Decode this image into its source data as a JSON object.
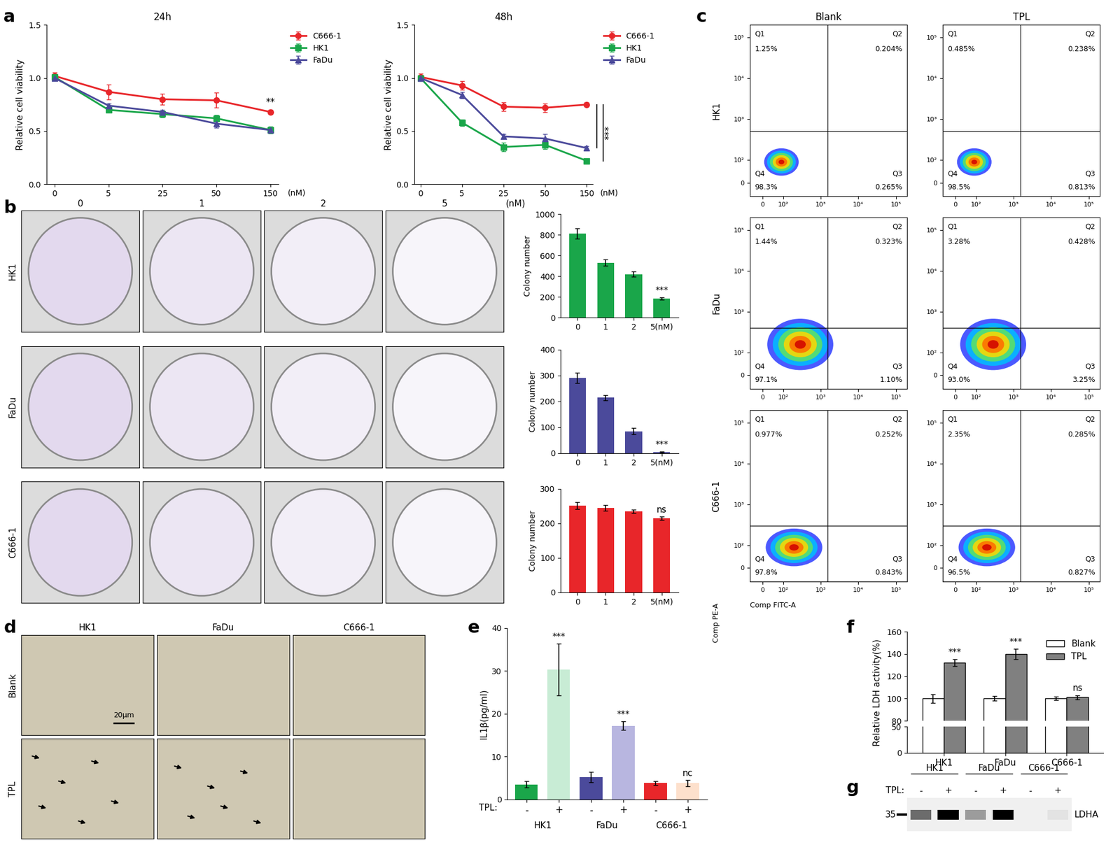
{
  "panel_labels": [
    "a",
    "b",
    "c",
    "d",
    "e",
    "f",
    "g"
  ],
  "chart_data": [
    {
      "type": "line",
      "title": "24h",
      "categories": [
        "0",
        "5",
        "25",
        "50",
        "150"
      ],
      "xlabel": "(nM)",
      "ylabel": "Relative cell viability",
      "ylim": [
        0,
        1.5
      ],
      "yticks": [
        {
          "value": 0,
          "label": "0.0"
        },
        0.5,
        {
          "value": 1,
          "label": "1.0"
        },
        1.5
      ],
      "legend": "upper left",
      "series": [
        {
          "name": "C666-1",
          "color": "#e8262a",
          "marker": "circle",
          "values": [
            1.02,
            0.87,
            0.8,
            0.79,
            0.68
          ],
          "errors": [
            0.03,
            0.07,
            0.05,
            0.07,
            0.02
          ]
        },
        {
          "name": "HK1",
          "color": "#1aa64a",
          "marker": "square",
          "values": [
            1.01,
            0.7,
            0.66,
            0.62,
            0.51
          ],
          "errors": [
            0.02,
            0.02,
            0.03,
            0.03,
            0.03
          ]
        },
        {
          "name": "FaDu",
          "color": "#4b4a9b",
          "marker": "triangle",
          "values": [
            1.0,
            0.74,
            0.68,
            0.57,
            0.51
          ],
          "errors": [
            0.02,
            0.02,
            0.02,
            0.04,
            0.02
          ]
        }
      ],
      "annotations": [
        {
          "text": "**",
          "category": "150",
          "series": [
            "C666-1"
          ]
        }
      ]
    },
    {
      "type": "line",
      "title": "48h",
      "categories": [
        "0",
        "5",
        "25",
        "50",
        "150"
      ],
      "xlabel": "(nM)",
      "ylabel": "Relative cell viability",
      "ylim": [
        0,
        1.5
      ],
      "yticks": [
        {
          "value": 0,
          "label": "0.0"
        },
        0.5,
        {
          "value": 1,
          "label": "1.0"
        },
        1.5
      ],
      "legend": "upper left",
      "series": [
        {
          "name": "C666-1",
          "color": "#e8262a",
          "marker": "circle",
          "values": [
            1.01,
            0.93,
            0.73,
            0.72,
            0.75
          ],
          "errors": [
            0.03,
            0.04,
            0.04,
            0.04,
            0.02
          ]
        },
        {
          "name": "HK1",
          "color": "#1aa64a",
          "marker": "square",
          "values": [
            1.0,
            0.58,
            0.35,
            0.37,
            0.22
          ],
          "errors": [
            0.02,
            0.03,
            0.04,
            0.04,
            0.02
          ]
        },
        {
          "name": "FaDu",
          "color": "#4b4a9b",
          "marker": "triangle",
          "values": [
            1.0,
            0.84,
            0.45,
            0.43,
            0.34
          ],
          "errors": [
            0.02,
            0.03,
            0.02,
            0.04,
            0.02
          ]
        }
      ],
      "annotations": [
        {
          "text": "***",
          "category": "150",
          "series": [
            "C666-1",
            "FaDu",
            "HK1"
          ]
        }
      ]
    },
    {
      "type": "bar",
      "categories": [
        "0",
        "1",
        "2",
        "5(nM)"
      ],
      "ylabel": "Colony number",
      "color": "#1aa64a",
      "values": [
        810,
        530,
        420,
        185
      ],
      "errors": [
        50,
        30,
        25,
        12
      ],
      "ylim": [
        0,
        1000
      ],
      "yticks": [
        0,
        200,
        400,
        600,
        800,
        1000
      ],
      "annotations": [
        {
          "text": "***",
          "category": "5(nM)"
        }
      ]
    },
    {
      "type": "bar",
      "categories": [
        "0",
        "1",
        "2",
        "5(nM)"
      ],
      "ylabel": "Colony number",
      "color": "#4b4a9b",
      "values": [
        290,
        215,
        85,
        5
      ],
      "errors": [
        20,
        10,
        12,
        2
      ],
      "ylim": [
        0,
        400
      ],
      "yticks": [
        0,
        100,
        200,
        300,
        400
      ],
      "annotations": [
        {
          "text": "***",
          "category": "5(nM)"
        }
      ]
    },
    {
      "type": "bar",
      "categories": [
        "0",
        "1",
        "2",
        "5(nM)"
      ],
      "ylabel": "Colony number",
      "color": "#e8262a",
      "values": [
        252,
        245,
        235,
        215
      ],
      "errors": [
        10,
        8,
        5,
        5
      ],
      "ylim": [
        0,
        300
      ],
      "yticks": [
        0,
        100,
        200,
        300
      ],
      "annotations": [
        {
          "text": "ns",
          "category": "5(nM)"
        }
      ]
    },
    {
      "type": "bar",
      "ylabel": "IL1β(pg/ml)",
      "categories": [
        "-",
        "+",
        "-",
        "+",
        "-",
        "+"
      ],
      "groups": [
        "HK1",
        "FaDu",
        "C666-1"
      ],
      "group_title": "TPL:",
      "colors": [
        "#1aa64a",
        "#c8ecd5",
        "#4b4a9b",
        "#b8b6e0",
        "#e8262a",
        "#fde0cc"
      ],
      "values": [
        3.5,
        30.3,
        5.2,
        17.2,
        3.8,
        3.8
      ],
      "errors": [
        0.7,
        6.0,
        1.2,
        1.0,
        0.5,
        0.7
      ],
      "ylim": [
        0,
        40
      ],
      "yticks": [
        0,
        10,
        20,
        30,
        40
      ],
      "annotations": [
        {
          "text": "***",
          "group": "HK1"
        },
        {
          "text": "***",
          "group": "FaDu"
        },
        {
          "text": "nc",
          "group": "C666-1"
        }
      ]
    },
    {
      "type": "bar",
      "ylabel": "Relative LDH activity(%)",
      "categories": [
        "HK1",
        "FaDu",
        "C666-1"
      ],
      "segments": [
        {
          "ylim": [
            80,
            160
          ],
          "yticks": [
            80,
            100,
            120,
            140,
            160
          ]
        },
        {
          "ylim": [
            0,
            50
          ],
          "yticks": [
            0,
            50
          ]
        }
      ],
      "legend": "upper right",
      "series": [
        {
          "name": "Blank",
          "color": "#ffffff",
          "values": [
            100,
            100,
            100
          ],
          "errors": [
            4,
            2,
            1.5
          ]
        },
        {
          "name": "TPL",
          "color": "#808080",
          "values": [
            132,
            140,
            101
          ],
          "errors": [
            3,
            4.5,
            2
          ]
        }
      ],
      "annotations": [
        {
          "text": "***",
          "category": "HK1",
          "series": "TPL"
        },
        {
          "text": "***",
          "category": "FaDu",
          "series": "TPL"
        },
        {
          "text": "ns",
          "category": "C666-1",
          "series": "TPL"
        }
      ]
    }
  ],
  "plates": {
    "columns": [
      "0",
      "1",
      "2",
      "5"
    ],
    "unit": "(nM)",
    "rows": [
      "HK1",
      "FaDu",
      "C666-1"
    ]
  },
  "flow": {
    "columns": [
      "Blank",
      "TPL"
    ],
    "rows": [
      "HK1",
      "FaDu",
      "C666-1"
    ],
    "xlabel": "Comp FITC-A",
    "ylabel": "Comp PE-A",
    "xlim": [
      -60,
      200000
    ],
    "ylim": [
      -60,
      200000
    ],
    "xticks": [
      0,
      {
        "value": 100,
        "label": "10²"
      },
      {
        "value": 1000,
        "label": "10³"
      },
      {
        "value": 10000,
        "label": "10⁴"
      },
      {
        "value": 100000,
        "label": "10⁵"
      }
    ],
    "yticks": [
      0,
      {
        "value": 100,
        "label": "10²"
      },
      {
        "value": 1000,
        "label": "10³"
      },
      {
        "value": 10000,
        "label": "10⁴"
      },
      {
        "value": 100000,
        "label": "10⁵"
      }
    ],
    "gates": [
      [
        1500,
        500
      ],
      [
        1500,
        400
      ],
      [
        1500,
        300
      ]
    ],
    "quadrant_names": [
      "Q1",
      "Q2",
      "Q3",
      "Q4"
    ],
    "quadrants": [
      [
        [
          "1.25%",
          "0.204%",
          "0.265%",
          "98.3%"
        ],
        [
          "0.485%",
          "0.238%",
          "0.813%",
          "98.5%"
        ]
      ],
      [
        [
          "1.44%",
          "0.323%",
          "1.10%",
          "97.1%"
        ],
        [
          "3.28%",
          "0.428%",
          "3.25%",
          "93.0%"
        ]
      ],
      [
        [
          "0.977%",
          "0.252%",
          "0.843%",
          "97.8%"
        ],
        [
          "2.35%",
          "0.285%",
          "0.827%",
          "96.5%"
        ]
      ]
    ]
  },
  "micrographs": {
    "columns": [
      "HK1",
      "FaDu",
      "C666-1"
    ],
    "rows": [
      "Blank",
      "TPL"
    ],
    "scale_bar": "20μm"
  },
  "blot": {
    "groups": [
      "HK1",
      "FaDu",
      "C666-1"
    ],
    "treatment_label": "TPL:",
    "lanes": [
      "-",
      "+",
      "-",
      "+",
      "-",
      "+"
    ],
    "size_marker": "35",
    "protein": "LDHA",
    "band_intensity": [
      0.55,
      1.0,
      0.35,
      1.0,
      0.0,
      0.05
    ]
  }
}
